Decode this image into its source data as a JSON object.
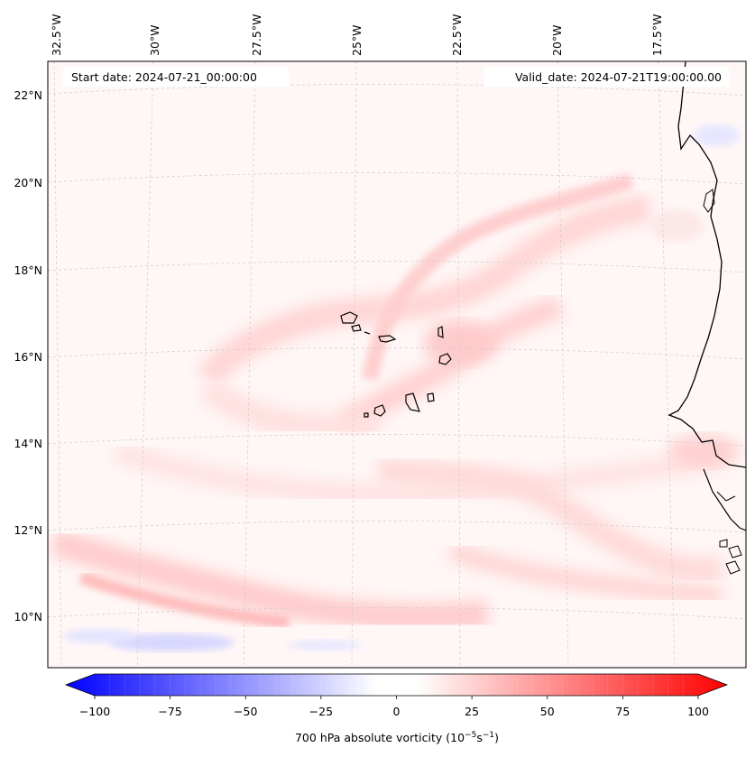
{
  "header": {
    "start_date": "Start date: 2024-07-21_00:00:00",
    "valid_date": "Valid_date: 2024-07-21T19:00:00.00"
  },
  "axes": {
    "lon_labels": [
      "32.5°W",
      "30°W",
      "27.5°W",
      "25°W",
      "22.5°W",
      "20°W",
      "17.5°W"
    ],
    "lat_labels": [
      "22°N",
      "20°N",
      "18°N",
      "16°N",
      "14°N",
      "12°N",
      "10°N"
    ]
  },
  "colorbar": {
    "ticks": [
      "−100",
      "−75",
      "−50",
      "−25",
      "0",
      "25",
      "50",
      "75",
      "100"
    ],
    "tick_values": [
      -100,
      -75,
      -50,
      -25,
      0,
      25,
      50,
      75,
      100
    ],
    "min": -100,
    "max": 100,
    "label_main": "700 hPa absolute vorticity (10",
    "label_exp1": "−5",
    "label_mid": "s",
    "label_exp2": "−1",
    "label_end": ")",
    "low_color": "#0000ff",
    "mid_color": "#ffffff",
    "high_color": "#ff0000"
  },
  "field": {
    "background_color": "#fff6f6",
    "coastline_color": "#000000",
    "gridline_color": "#cccccc"
  }
}
